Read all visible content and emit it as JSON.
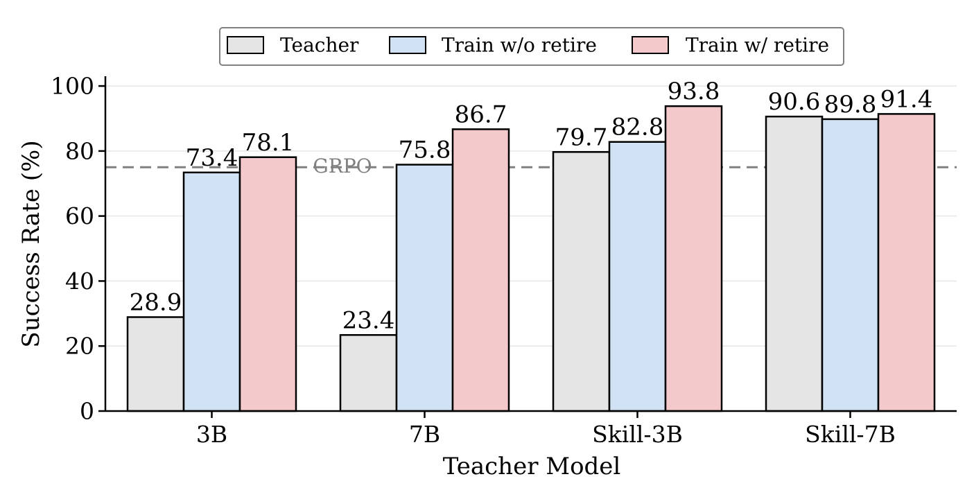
{
  "chart_data": {
    "type": "bar",
    "xlabel": "Teacher Model",
    "ylabel": "Success Rate (%)",
    "categories": [
      "3B",
      "7B",
      "Skill-3B",
      "Skill-7B"
    ],
    "series": [
      {
        "name": "Teacher",
        "values": [
          28.9,
          23.4,
          79.7,
          90.6
        ],
        "color": "#e5e5e5"
      },
      {
        "name": "Train w/o retire",
        "values": [
          73.4,
          75.8,
          82.8,
          89.8
        ],
        "color": "#d0e2f3"
      },
      {
        "name": "Train w/ retire",
        "values": [
          78.1,
          86.7,
          93.8,
          91.4
        ],
        "color": "#f4c9cb"
      }
    ],
    "value_labels": {
      "Teacher": [
        "28.9",
        "23.4",
        "79.7",
        "90.6"
      ],
      "Train w/o retire": [
        "73.4",
        "75.8",
        "82.8",
        "89.8"
      ],
      "Train w/ retire": [
        "78.1",
        "86.7",
        "93.8",
        "91.4"
      ]
    },
    "ylim": [
      0,
      103
    ],
    "yticks": [
      0,
      20,
      40,
      60,
      80,
      100
    ],
    "ytick_labels": [
      "0",
      "20",
      "40",
      "60",
      "80",
      "100"
    ],
    "grid": "horizontal",
    "legend_position": "top-center",
    "reference_line": {
      "label": "GRPO",
      "value": 75,
      "color": "#808080",
      "style": "dashed"
    }
  }
}
